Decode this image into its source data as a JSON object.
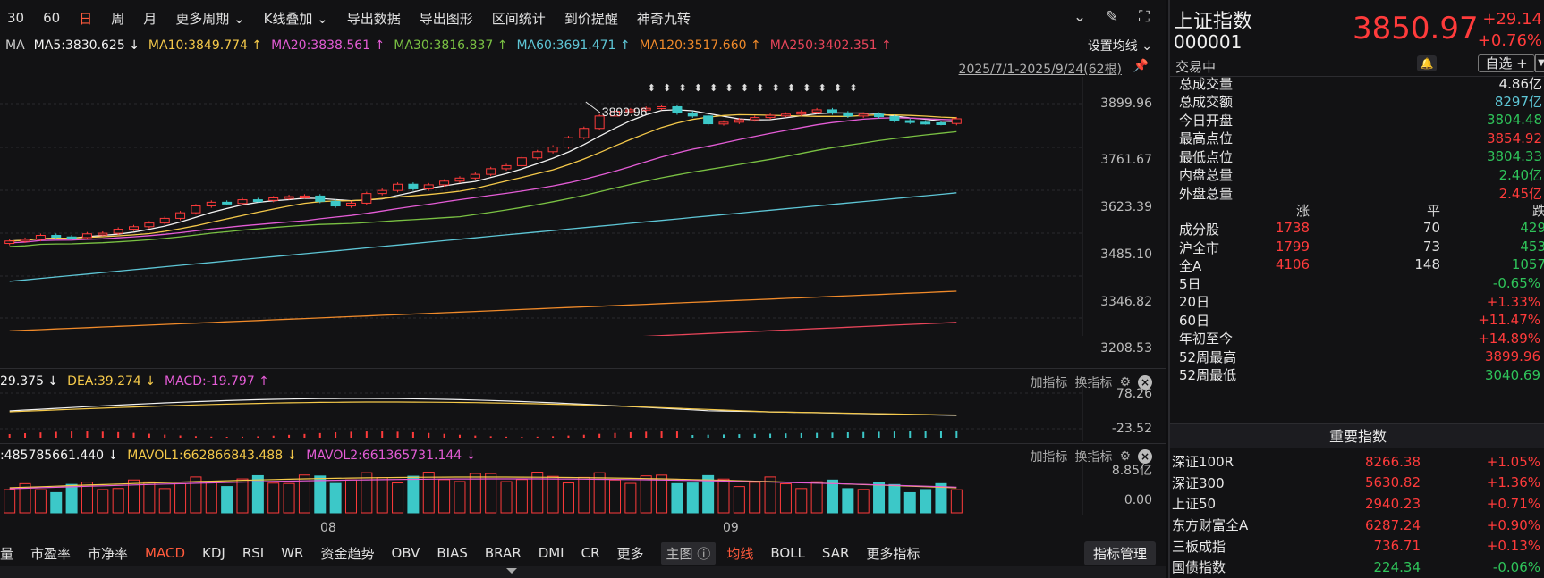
{
  "toolbar": {
    "items": [
      "30",
      "60",
      "日",
      "周",
      "月",
      "更多周期 ⌄",
      "K线叠加 ⌄",
      "导出数据",
      "导出图形",
      "区间统计",
      "到价提醒",
      "神奇九转"
    ],
    "active_index": 2
  },
  "ma_legend": {
    "items": [
      {
        "text": "MA",
        "color": "#d0d0d0"
      },
      {
        "text": "MA5:3830.625 ↓",
        "color": "#f2f2f2"
      },
      {
        "text": "MA10:3849.774 ↑",
        "color": "#f5c94a"
      },
      {
        "text": "MA20:3838.561 ↑",
        "color": "#e45cd6"
      },
      {
        "text": "MA30:3816.837 ↑",
        "color": "#7ac143"
      },
      {
        "text": "MA60:3691.471 ↑",
        "color": "#5ec6d6"
      },
      {
        "text": "MA120:3517.660 ↑",
        "color": "#f08a2a"
      },
      {
        "text": "MA250:3402.351 ↑",
        "color": "#e8455a"
      }
    ],
    "setting": "设置均线 ⌄"
  },
  "range": "2025/7/1-2025/9/24(62根)",
  "high_marker": "3899.96",
  "price_axis": [
    "3899.96",
    "3761.67",
    "3623.39",
    "3485.10",
    "3346.82",
    "3208.53"
  ],
  "macd": {
    "legend": [
      {
        "text": "29.375 ↓",
        "color": "#f2f2f2"
      },
      {
        "text": "DEA:39.274 ↓",
        "color": "#f5c94a"
      },
      {
        "text": "MACD:-19.797 ↑",
        "color": "#e45cd6"
      }
    ],
    "axis": [
      "78.26",
      "-23.52"
    ]
  },
  "vol": {
    "legend": [
      {
        "text": ":485785661.440 ↓",
        "color": "#f2f2f2"
      },
      {
        "text": "MAVOL1:662866843.488 ↓",
        "color": "#f5c94a"
      },
      {
        "text": "MAVOL2:661365731.144 ↓",
        "color": "#e45cd6"
      }
    ],
    "axis": [
      "8.85亿",
      "0.00"
    ]
  },
  "sub_tools": {
    "add": "加指标",
    "change": "换指标"
  },
  "x_labels": [
    "08",
    "09"
  ],
  "bottom_bar": {
    "items": [
      "量",
      "市盈率",
      "市净率",
      "MACD",
      "KDJ",
      "RSI",
      "WR",
      "资金趋势",
      "OBV",
      "BIAS",
      "BRAR",
      "DMI",
      "CR",
      "更多"
    ],
    "active_index": 3,
    "main_label": "主图 ⓘ",
    "main_items": [
      "均线",
      "BOLL",
      "SAR",
      "更多指标"
    ],
    "main_active": 0,
    "manage": "指标管理"
  },
  "quote": {
    "name": "上证指数",
    "code": "000001",
    "state": "交易中",
    "price": "3850.97",
    "change": "+29.14",
    "change_pct": "+0.76%",
    "watch": "自选 +",
    "colors": {
      "up": "#ff3b3b",
      "down": "#2fc45a"
    }
  },
  "stats": [
    {
      "k": "总成交量",
      "v": "4.86亿",
      "c": "#e8e8e8"
    },
    {
      "k": "总成交额",
      "v": "8297亿",
      "c": "#5ec6d6"
    },
    {
      "k": "今日开盘",
      "v": "3804.48",
      "c": "#2fc45a"
    },
    {
      "k": "最高点位",
      "v": "3854.92",
      "c": "#ff3b3b"
    },
    {
      "k": "最低点位",
      "v": "3804.33",
      "c": "#2fc45a"
    },
    {
      "k": "内盘总量",
      "v": "2.40亿",
      "c": "#2fc45a"
    },
    {
      "k": "外盘总量",
      "v": "2.45亿",
      "c": "#ff3b3b"
    }
  ],
  "breadth": {
    "head": {
      "up": "涨",
      "flat": "平",
      "down": "跌"
    },
    "rows": [
      {
        "k": "成分股",
        "up": "1738",
        "flat": "70",
        "down": "429"
      },
      {
        "k": "沪全市",
        "up": "1799",
        "flat": "73",
        "down": "453"
      },
      {
        "k": "全A",
        "up": "4106",
        "flat": "148",
        "down": "1057"
      }
    ]
  },
  "perf": [
    {
      "k": "5日",
      "v": "-0.65%",
      "c": "#2fc45a"
    },
    {
      "k": "20日",
      "v": "+1.33%",
      "c": "#ff3b3b"
    },
    {
      "k": "60日",
      "v": "+11.47%",
      "c": "#ff3b3b"
    },
    {
      "k": "年初至今",
      "v": "+14.89%",
      "c": "#ff3b3b"
    },
    {
      "k": "52周最高",
      "v": "3899.96",
      "c": "#ff3b3b"
    },
    {
      "k": "52周最低",
      "v": "3040.69",
      "c": "#2fc45a"
    }
  ],
  "major": {
    "title": "重要指数",
    "rows": [
      {
        "n": "深证100R",
        "p": "8266.38",
        "c": "+1.05%",
        "dir": "up"
      },
      {
        "n": "深证300",
        "p": "5630.82",
        "c": "+1.36%",
        "dir": "up"
      },
      {
        "n": "上证50",
        "p": "2940.23",
        "c": "+0.71%",
        "dir": "up"
      },
      {
        "n": "东方财富全A",
        "p": "6287.24",
        "c": "+0.90%",
        "dir": "up"
      },
      {
        "n": "三板成指",
        "p": "736.71",
        "c": "+0.13%",
        "dir": "up"
      },
      {
        "n": "国债指数",
        "p": "224.34",
        "c": "-0.06%",
        "dir": "down"
      }
    ]
  },
  "chart_data": {
    "type": "candlestick",
    "period": "2025/7/1-2025/9/24",
    "bars": 62,
    "ylim": [
      3208.53,
      3899.96
    ],
    "x_ticks": [
      "08",
      "09"
    ],
    "close": [
      3457,
      3462,
      3475,
      3470,
      3468,
      3480,
      3482,
      3495,
      3503,
      3515,
      3530,
      3548,
      3570,
      3582,
      3578,
      3590,
      3588,
      3596,
      3600,
      3602,
      3585,
      3570,
      3579,
      3610,
      3620,
      3640,
      3625,
      3638,
      3650,
      3660,
      3672,
      3690,
      3700,
      3725,
      3745,
      3760,
      3790,
      3820,
      3860,
      3875,
      3880,
      3885,
      3890,
      3870,
      3860,
      3835,
      3840,
      3848,
      3855,
      3862,
      3866,
      3873,
      3880,
      3870,
      3860,
      3866,
      3858,
      3845,
      3840,
      3838,
      3836,
      3851
    ]
  }
}
